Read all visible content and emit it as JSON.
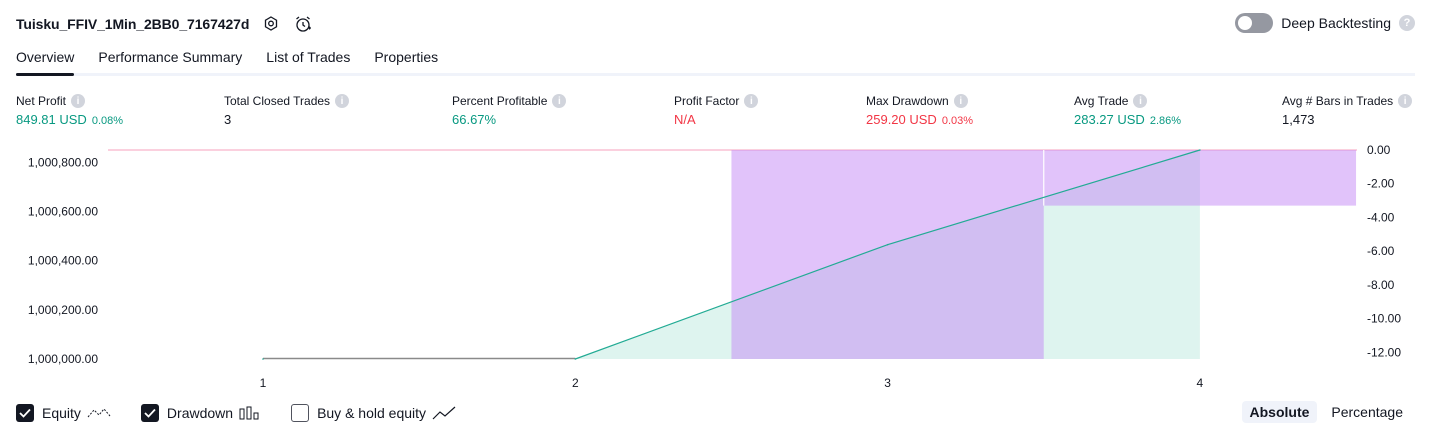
{
  "header": {
    "title": "Tuisku_FFIV_1Min_2BB0_7167427d",
    "deep_backtesting_label": "Deep Backtesting",
    "help_glyph": "?"
  },
  "tabs": [
    {
      "label": "Overview",
      "active": true
    },
    {
      "label": "Performance Summary"
    },
    {
      "label": "List of Trades"
    },
    {
      "label": "Properties"
    }
  ],
  "info_glyph": "i",
  "metrics": {
    "net_profit": {
      "label": "Net Profit",
      "value": "849.81 USD",
      "sub": "0.08%"
    },
    "total_closed_trades": {
      "label": "Total Closed Trades",
      "value": "3"
    },
    "percent_profitable": {
      "label": "Percent Profitable",
      "value": "66.67%"
    },
    "profit_factor": {
      "label": "Profit Factor",
      "value": "N/A"
    },
    "max_drawdown": {
      "label": "Max Drawdown",
      "value": "259.20 USD",
      "sub": "0.03%"
    },
    "avg_trade": {
      "label": "Avg Trade",
      "value": "283.27 USD",
      "sub": "2.86%"
    },
    "avg_bars": {
      "label": "Avg # Bars in Trades",
      "value": "1,473"
    }
  },
  "chart_data": {
    "type": "line",
    "x": [
      1,
      2,
      3,
      4
    ],
    "x_tick_labels": [
      "1",
      "2",
      "3",
      "4"
    ],
    "series": [
      {
        "kind": "equity-line",
        "points": [
          [
            1,
            1000000
          ],
          [
            2,
            1000000
          ],
          [
            3,
            1000465
          ],
          [
            4,
            1000849.81
          ]
        ]
      },
      {
        "kind": "drawdown-bars",
        "axis": "right",
        "bars": [
          {
            "start": 2.5,
            "end": 3.5,
            "value": -12.4
          },
          {
            "start": 3.5,
            "end": 4.5,
            "value": -3.3
          }
        ]
      }
    ],
    "left_axis": {
      "ticks": [
        "1,000,800.00",
        "1,000,600.00",
        "1,000,400.00",
        "1,000,200.00",
        "1,000,000.00"
      ],
      "tick_values": [
        1000800,
        1000600,
        1000400,
        1000200,
        1000000
      ],
      "range": [
        1000000,
        1000849.81
      ]
    },
    "right_axis": {
      "ticks": [
        "0.00",
        "-2.00",
        "-4.00",
        "-6.00",
        "-8.00",
        "-10.00",
        "-12.00"
      ],
      "tick_values": [
        0,
        -2,
        -4,
        -6,
        -8,
        -10,
        -12
      ],
      "range": [
        -12.4,
        0
      ]
    },
    "colors": {
      "equity_line": "#22ab94",
      "equity_fill": "#d8f2ec",
      "drawdown_fill": "#c387f5",
      "buy_hold_line": "#f7a2bc"
    }
  },
  "legend": {
    "items": [
      {
        "label": "Equity",
        "checked": true
      },
      {
        "label": "Drawdown",
        "checked": true
      },
      {
        "label": "Buy & hold equity",
        "checked": false
      }
    ]
  },
  "mode": {
    "absolute": "Absolute",
    "percentage": "Percentage",
    "selected": "Absolute"
  }
}
